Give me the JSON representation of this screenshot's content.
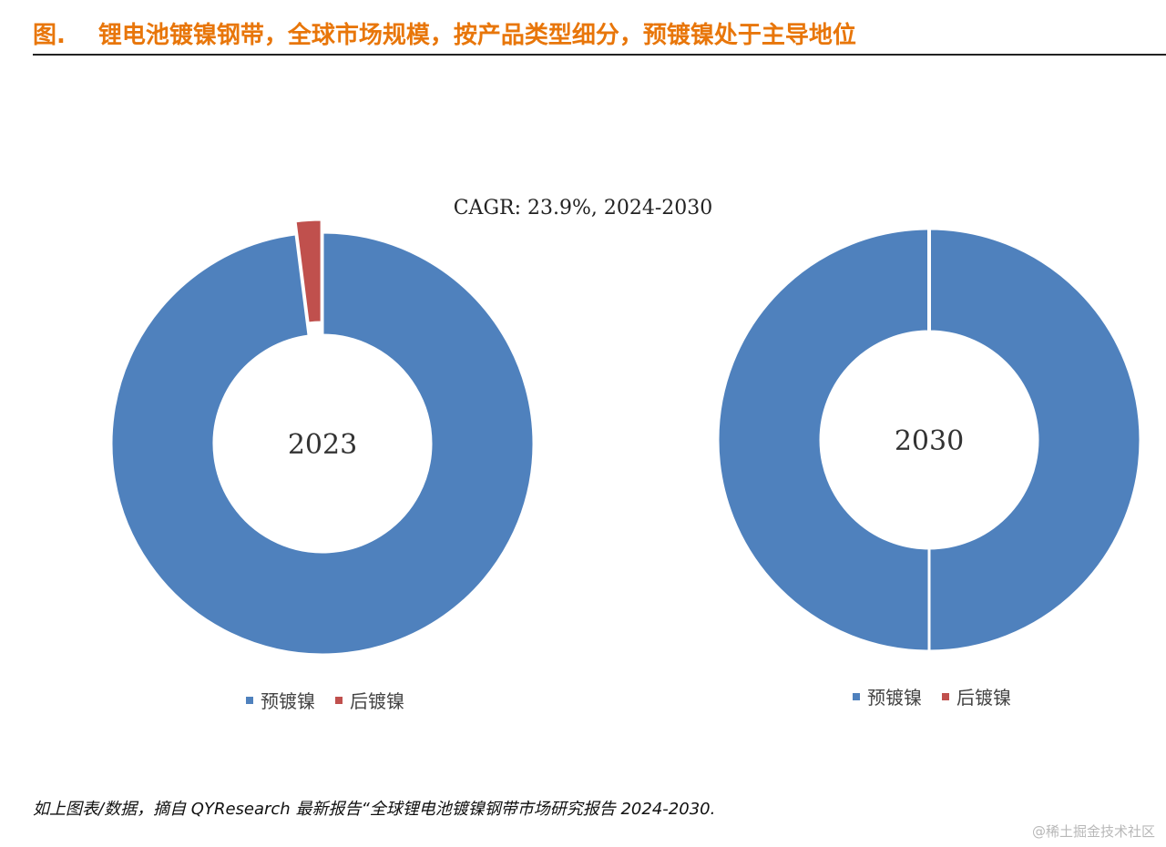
{
  "header": {
    "label": "图.",
    "title": "锂电池镀镍钢带，全球市场规模，按产品类型细分，预镀镍处于主导地位"
  },
  "chart_data": [
    {
      "type": "pie",
      "center_label": "2023",
      "annotation": "CAGR:  23.9%, 2024-2030",
      "series": [
        {
          "name": "预镀镍",
          "value": 98
        },
        {
          "name": "后镀镍",
          "value": 2
        }
      ],
      "legend_position": "bottom"
    },
    {
      "type": "pie",
      "center_label": "2030",
      "series": [
        {
          "name": "预镀镍",
          "value": 100
        },
        {
          "name": "后镀镍",
          "value": 0
        }
      ],
      "legend_position": "bottom"
    }
  ],
  "colors": {
    "预镀镍": "#4f81bd",
    "后镀镍": "#c0504d",
    "title": "#e8760a"
  },
  "source": "如上图表/数据，摘自 QYResearch 最新报告“全球锂电池镀镍钢带市场研究报告 2024-2030.",
  "watermark": "@稀土掘金技术社区"
}
